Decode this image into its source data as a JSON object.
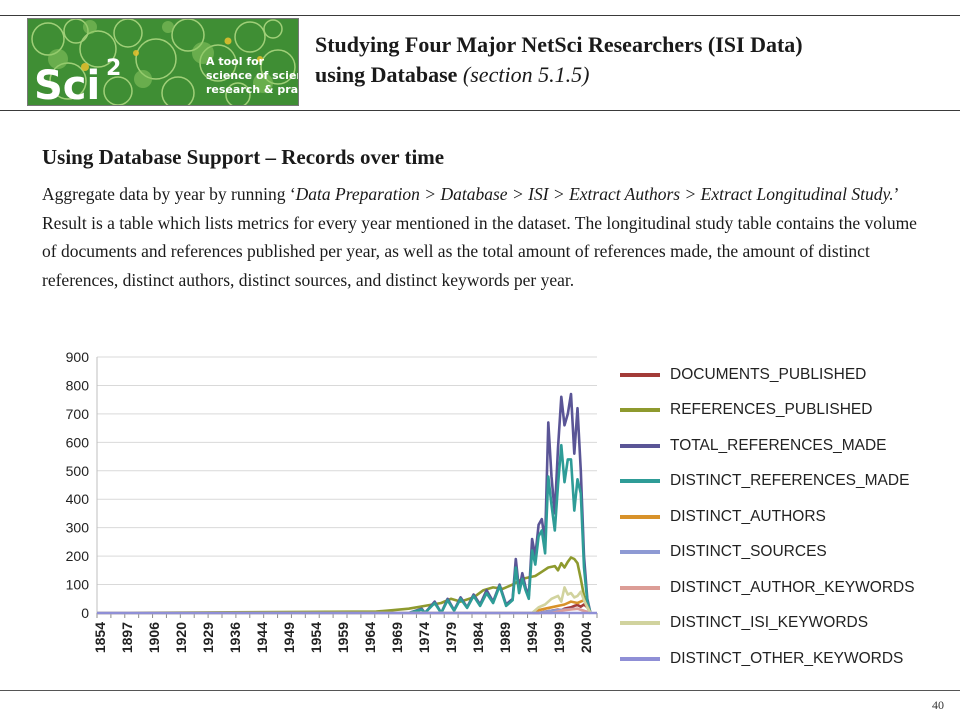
{
  "header": {
    "logo_text_line1": "A tool for",
    "logo_text_line2": "science of science",
    "logo_text_line3": "research & practice",
    "logo_brand": "Sci",
    "logo_superscript": "2",
    "title_line1": "Studying Four Major NetSci Researchers (ISI Data)",
    "title_line2_main": "using Database",
    "title_line2_section": "(section 5.1.5)"
  },
  "body": {
    "heading": "Using Database Support – Records over time",
    "para_intro": "Aggregate data by year by running ‘",
    "para_menu_path": "Data Preparation > Database > ISI > Extract Authors > Extract Longitudinal Study.",
    "para_rest": "’ Result is a table which lists metrics for every year mentioned in the dataset.  The longitudinal study table contains the volume of documents and references published per year, as well as the total amount of references made, the amount of distinct references, distinct authors, distinct sources, and distinct keywords per year."
  },
  "chart_data": {
    "type": "line",
    "ylim": [
      0,
      900
    ],
    "yticks": [
      "900",
      "800",
      "700",
      "600",
      "500",
      "400",
      "300",
      "200",
      "100",
      "0"
    ],
    "xlim": [
      1854,
      2008
    ],
    "xticks": [
      "1854",
      "1897",
      "1906",
      "1911",
      "1916",
      "1920",
      "1925",
      "1929",
      "1933",
      "1936",
      "1940",
      "1944",
      "1947",
      "1949",
      "1952",
      "1954",
      "1957",
      "1959",
      "1962",
      "1964",
      "1966",
      "1969",
      "1971",
      "1974",
      "1976",
      "1979",
      "1981",
      "1984",
      "1986",
      "1989",
      "1991",
      "1994",
      "1996",
      "1999",
      "2001",
      "2004",
      "2006"
    ],
    "xlabels": [
      "1854",
      "1897",
      "1906",
      "1920",
      "1929",
      "1936",
      "1944",
      "1949",
      "1954",
      "1959",
      "1964",
      "1969",
      "1974",
      "1979",
      "1984",
      "1989",
      "1994",
      "1999",
      "2004"
    ],
    "legend_position": "right",
    "series": [
      {
        "name": "DOCUMENTS_PUBLISHED",
        "color": "#a33b38",
        "x": [
          1854,
          1990,
          1992,
          1994,
          1996,
          1997,
          1998,
          1999,
          2000,
          2001,
          2002,
          2003,
          2004,
          2005,
          2006
        ],
        "values": [
          0,
          0,
          5,
          8,
          12,
          10,
          15,
          18,
          20,
          25,
          28,
          22,
          30,
          20,
          0
        ]
      },
      {
        "name": "REFERENCES_PUBLISHED",
        "color": "#8e9a2e",
        "x": [
          1854,
          1940,
          1945,
          1950,
          1955,
          1960,
          1963,
          1966,
          1970,
          1973,
          1976,
          1979,
          1982,
          1985,
          1987,
          1989,
          1991,
          1993,
          1995,
          1996,
          1997,
          1998,
          1999,
          2000,
          2001,
          2002,
          2003,
          2004,
          2005,
          2006
        ],
        "values": [
          0,
          5,
          10,
          15,
          25,
          35,
          50,
          40,
          55,
          80,
          90,
          85,
          100,
          120,
          125,
          130,
          145,
          160,
          165,
          150,
          175,
          160,
          180,
          195,
          190,
          175,
          120,
          60,
          20,
          0
        ]
      },
      {
        "name": "TOTAL_REFERENCES_MADE",
        "color": "#5a5596",
        "x": [
          1854,
          1950,
          1954,
          1955,
          1958,
          1960,
          1962,
          1964,
          1966,
          1968,
          1970,
          1972,
          1974,
          1976,
          1978,
          1980,
          1982,
          1983,
          1984,
          1985,
          1986,
          1987,
          1988,
          1989,
          1990,
          1991,
          1992,
          1993,
          1994,
          1995,
          1996,
          1997,
          1998,
          1999,
          2000,
          2001,
          2002,
          2003,
          2004,
          2005,
          2006
        ],
        "values": [
          0,
          0,
          15,
          0,
          40,
          0,
          50,
          10,
          55,
          20,
          65,
          30,
          80,
          40,
          100,
          30,
          50,
          190,
          80,
          140,
          90,
          60,
          260,
          200,
          310,
          330,
          250,
          670,
          480,
          350,
          580,
          760,
          660,
          700,
          770,
          560,
          720,
          500,
          200,
          50,
          0
        ]
      },
      {
        "name": "DISTINCT_REFERENCES_MADE",
        "color": "#2e9c97",
        "x": [
          1854,
          1950,
          1954,
          1955,
          1958,
          1960,
          1962,
          1964,
          1966,
          1968,
          1970,
          1972,
          1974,
          1976,
          1978,
          1980,
          1982,
          1983,
          1984,
          1985,
          1986,
          1987,
          1988,
          1989,
          1990,
          1991,
          1992,
          1993,
          1994,
          1995,
          1996,
          1997,
          1998,
          1999,
          2000,
          2001,
          2002,
          2003,
          2004,
          2005,
          2006
        ],
        "values": [
          0,
          0,
          12,
          0,
          35,
          0,
          45,
          8,
          50,
          18,
          60,
          25,
          70,
          35,
          95,
          25,
          45,
          160,
          70,
          120,
          80,
          50,
          220,
          170,
          270,
          290,
          210,
          480,
          380,
          290,
          450,
          590,
          460,
          540,
          540,
          360,
          470,
          420,
          160,
          40,
          0
        ]
      },
      {
        "name": "DISTINCT_AUTHORS",
        "color": "#d8922a",
        "x": [
          1854,
          1988,
          1990,
          1992,
          1994,
          1996,
          1998,
          2000,
          2002,
          2004,
          2006
        ],
        "values": [
          0,
          0,
          10,
          15,
          20,
          25,
          30,
          40,
          35,
          45,
          0
        ]
      },
      {
        "name": "DISTINCT_SOURCES",
        "color": "#8e9ad4",
        "x": [
          1854,
          1990,
          1994,
          1998,
          2002,
          2006
        ],
        "values": [
          0,
          0,
          8,
          12,
          15,
          0
        ]
      },
      {
        "name": "DISTINCT_AUTHOR_KEYWORDS",
        "color": "#dc9d96",
        "x": [
          1854,
          1994,
          1998,
          2002,
          2006
        ],
        "values": [
          0,
          0,
          10,
          15,
          0
        ]
      },
      {
        "name": "DISTINCT_ISI_KEYWORDS",
        "color": "#d1d39e",
        "x": [
          1854,
          1988,
          1990,
          1992,
          1994,
          1996,
          1997,
          1998,
          1999,
          2000,
          2001,
          2002,
          2003,
          2004,
          2005,
          2006
        ],
        "values": [
          0,
          0,
          20,
          30,
          50,
          60,
          40,
          90,
          65,
          70,
          55,
          60,
          75,
          45,
          20,
          0
        ]
      },
      {
        "name": "DISTINCT_OTHER_KEYWORDS",
        "color": "#8f8fd6",
        "x": [
          1854,
          2008
        ],
        "values": [
          0,
          0
        ]
      }
    ]
  },
  "footer": {
    "page_number": "40"
  },
  "colors": {
    "rule": "#3a3a3a",
    "logo_bg": "#4f9a3a"
  }
}
